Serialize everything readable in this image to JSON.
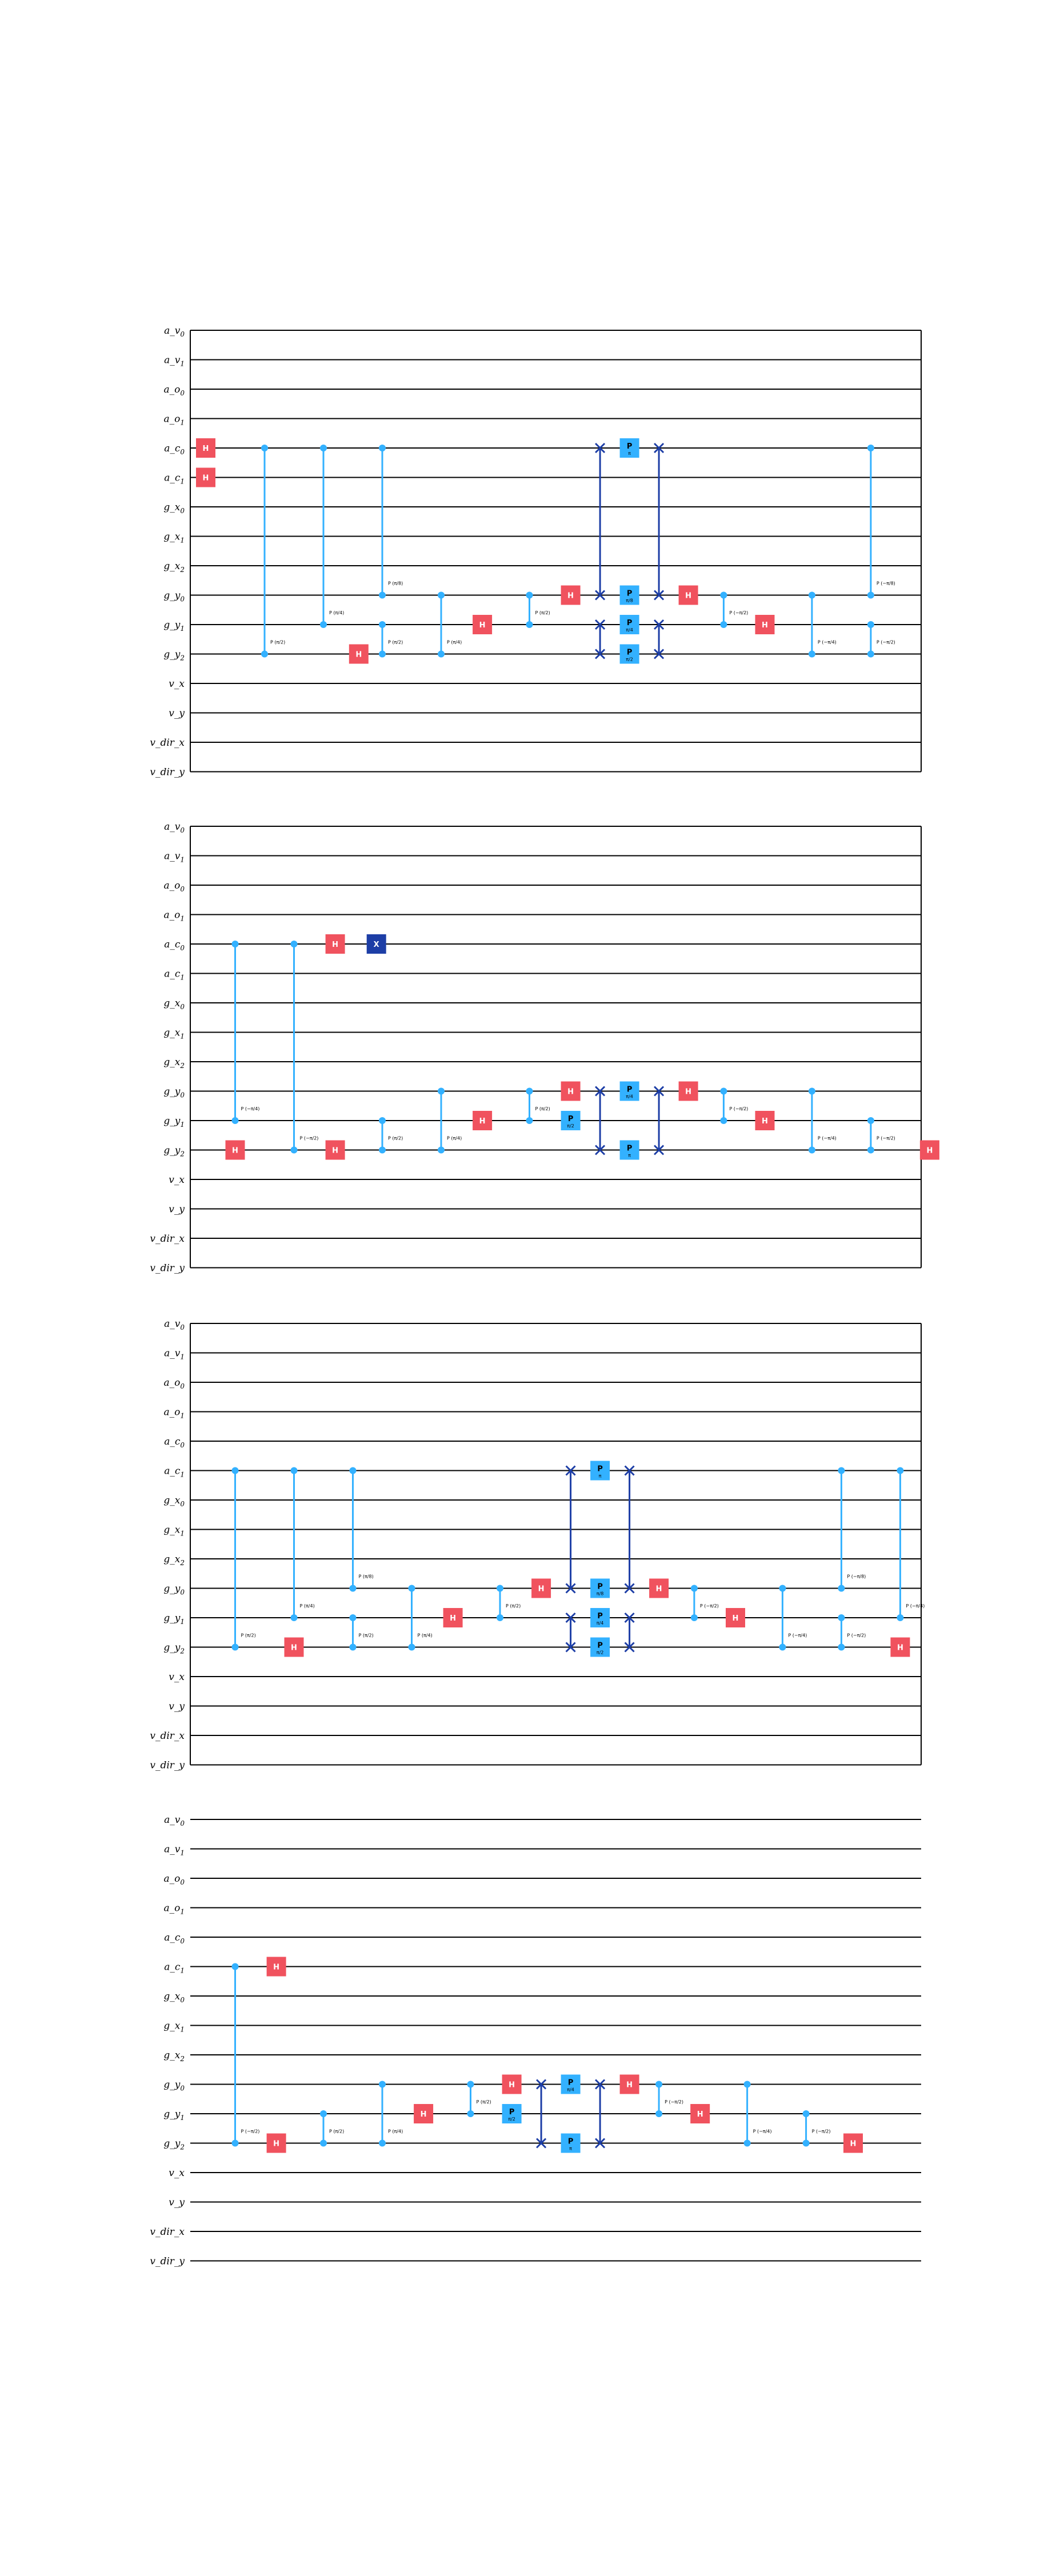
{
  "qubits": [
    "a_v0",
    "a_v1",
    "a_o0",
    "a_o1",
    "a_c0",
    "a_c1",
    "g_x0",
    "g_x1",
    "g_x2",
    "g_y0",
    "g_y1",
    "g_y2",
    "v_x",
    "v_y",
    "v_dir_x",
    "v_dir_y"
  ],
  "qubit_labels": [
    {
      "base": "a_v",
      "sub": "0"
    },
    {
      "base": "a_v",
      "sub": "1"
    },
    {
      "base": "a_o",
      "sub": "0"
    },
    {
      "base": "a_o",
      "sub": "1"
    },
    {
      "base": "a_c",
      "sub": "0"
    },
    {
      "base": "a_c",
      "sub": "1"
    },
    {
      "base": "g_x",
      "sub": "0"
    },
    {
      "base": "g_x",
      "sub": "1"
    },
    {
      "base": "g_x",
      "sub": "2"
    },
    {
      "base": "g_y",
      "sub": "0"
    },
    {
      "base": "g_y",
      "sub": "1"
    },
    {
      "base": "g_y",
      "sub": "2"
    },
    {
      "base": "v_x",
      "sub": ""
    },
    {
      "base": "v_y",
      "sub": ""
    },
    {
      "base": "v_dir_x",
      "sub": ""
    },
    {
      "base": "v_dir_y",
      "sub": ""
    }
  ],
  "colors": {
    "h_gate": "#f0525e",
    "p_gate": "#33b1ff",
    "x_gate": "#1d3ea6",
    "swap": "#1d3ea6",
    "control": "#33b1ff",
    "wire": "#000000"
  },
  "gate_labels": {
    "h": "H",
    "x": "X",
    "p": "P"
  },
  "panels": [
    {
      "gates": [
        {
          "t": "h",
          "q": "a_c0",
          "c": 0
        },
        {
          "t": "h",
          "q": "a_c1",
          "c": 0
        },
        {
          "t": "cp",
          "qs": [
            "a_c0",
            "g_y2"
          ],
          "c": 1,
          "label": "P (π/2)"
        },
        {
          "t": "cp",
          "qs": [
            "a_c0",
            "g_y1"
          ],
          "c": 2,
          "label": "P (π/4)"
        },
        {
          "t": "h",
          "q": "g_y2",
          "c": 2.6
        },
        {
          "t": "cp",
          "qs": [
            "a_c0",
            "g_y0"
          ],
          "c": 3,
          "label": "P (π/8)"
        },
        {
          "t": "cp",
          "qs": [
            "g_y1",
            "g_y2"
          ],
          "c": 3,
          "label": "P (π/2)"
        },
        {
          "t": "cp",
          "qs": [
            "g_y0",
            "g_y2"
          ],
          "c": 4,
          "label": "P (π/4)"
        },
        {
          "t": "h",
          "q": "g_y1",
          "c": 4.7
        },
        {
          "t": "cp",
          "qs": [
            "g_y0",
            "g_y1"
          ],
          "c": 5.5,
          "label": "P (π/2)"
        },
        {
          "t": "h",
          "q": "g_y0",
          "c": 6.2
        },
        {
          "t": "swap",
          "qs": [
            "a_c0",
            "g_y0"
          ],
          "c": 6.7
        },
        {
          "t": "swap",
          "qs": [
            "g_y1",
            "g_y2"
          ],
          "c": 6.7
        },
        {
          "t": "p",
          "q": "a_c0",
          "c": 7.2,
          "label": "π"
        },
        {
          "t": "p",
          "q": "g_y0",
          "c": 7.2,
          "label": "π/8"
        },
        {
          "t": "p",
          "q": "g_y1",
          "c": 7.2,
          "label": "π/4"
        },
        {
          "t": "p",
          "q": "g_y2",
          "c": 7.2,
          "label": "π/2"
        },
        {
          "t": "swap",
          "qs": [
            "a_c0",
            "g_y0"
          ],
          "c": 7.7
        },
        {
          "t": "swap",
          "qs": [
            "g_y1",
            "g_y2"
          ],
          "c": 7.7
        },
        {
          "t": "h",
          "q": "g_y0",
          "c": 8.2
        },
        {
          "t": "cp",
          "qs": [
            "g_y0",
            "g_y1"
          ],
          "c": 8.8,
          "label": "P (−π/2)"
        },
        {
          "t": "h",
          "q": "g_y1",
          "c": 9.5
        },
        {
          "t": "cp",
          "qs": [
            "g_y0",
            "g_y2"
          ],
          "c": 10.3,
          "label": "P (−π/4)"
        },
        {
          "t": "cp",
          "qs": [
            "a_c0",
            "g_y0"
          ],
          "c": 11.3,
          "label": "P (−π/8)"
        },
        {
          "t": "cp",
          "qs": [
            "g_y1",
            "g_y2"
          ],
          "c": 11.3,
          "label": "P (−π/2)"
        }
      ]
    },
    {
      "gates": [
        {
          "t": "cp",
          "qs": [
            "a_c0",
            "g_y1"
          ],
          "c": 0.5,
          "label": "P (−π/4)"
        },
        {
          "t": "h",
          "q": "g_y2",
          "c": 0.5
        },
        {
          "t": "cp",
          "qs": [
            "a_c0",
            "g_y2"
          ],
          "c": 1.5,
          "label": "P (−π/2)"
        },
        {
          "t": "h",
          "q": "a_c0",
          "c": 2.2
        },
        {
          "t": "h",
          "q": "g_y2",
          "c": 2.2
        },
        {
          "t": "x",
          "q": "a_c0",
          "c": 2.9
        },
        {
          "t": "cp",
          "qs": [
            "g_y1",
            "g_y2"
          ],
          "c": 3,
          "label": "P (π/2)"
        },
        {
          "t": "cp",
          "qs": [
            "g_y0",
            "g_y2"
          ],
          "c": 4,
          "label": "P (π/4)"
        },
        {
          "t": "h",
          "q": "g_y1",
          "c": 4.7
        },
        {
          "t": "cp",
          "qs": [
            "g_y0",
            "g_y1"
          ],
          "c": 5.5,
          "label": "P (π/2)"
        },
        {
          "t": "h",
          "q": "g_y0",
          "c": 6.2
        },
        {
          "t": "p",
          "q": "g_y1",
          "c": 6.2,
          "label": "π/2"
        },
        {
          "t": "swap",
          "qs": [
            "g_y0",
            "g_y2"
          ],
          "c": 6.7
        },
        {
          "t": "p",
          "q": "g_y0",
          "c": 7.2,
          "label": "π/4"
        },
        {
          "t": "p",
          "q": "g_y2",
          "c": 7.2,
          "label": "π"
        },
        {
          "t": "swap",
          "qs": [
            "g_y0",
            "g_y2"
          ],
          "c": 7.7
        },
        {
          "t": "h",
          "q": "g_y0",
          "c": 8.2
        },
        {
          "t": "cp",
          "qs": [
            "g_y0",
            "g_y1"
          ],
          "c": 8.8,
          "label": "P (−π/2)"
        },
        {
          "t": "h",
          "q": "g_y1",
          "c": 9.5
        },
        {
          "t": "cp",
          "qs": [
            "g_y0",
            "g_y2"
          ],
          "c": 10.3,
          "label": "P (−π/4)"
        },
        {
          "t": "cp",
          "qs": [
            "g_y1",
            "g_y2"
          ],
          "c": 11.3,
          "label": "P (−π/2)"
        },
        {
          "t": "h",
          "q": "g_y2",
          "c": 12.3
        }
      ]
    },
    {
      "gates": [
        {
          "t": "cp",
          "qs": [
            "a_c1",
            "g_y2"
          ],
          "c": 0.5,
          "label": "P (π/2)"
        },
        {
          "t": "cp",
          "qs": [
            "a_c1",
            "g_y1"
          ],
          "c": 1.5,
          "label": "P (π/4)"
        },
        {
          "t": "h",
          "q": "g_y2",
          "c": 1.5
        },
        {
          "t": "cp",
          "qs": [
            "a_c1",
            "g_y0"
          ],
          "c": 2.5,
          "label": "P (π/8)"
        },
        {
          "t": "cp",
          "qs": [
            "g_y1",
            "g_y2"
          ],
          "c": 2.5,
          "label": "P (π/2)"
        },
        {
          "t": "cp",
          "qs": [
            "g_y0",
            "g_y2"
          ],
          "c": 3.5,
          "label": "P (π/4)"
        },
        {
          "t": "h",
          "q": "g_y1",
          "c": 4.2
        },
        {
          "t": "cp",
          "qs": [
            "g_y0",
            "g_y1"
          ],
          "c": 5,
          "label": "P (π/2)"
        },
        {
          "t": "h",
          "q": "g_y0",
          "c": 5.7
        },
        {
          "t": "swap",
          "qs": [
            "a_c1",
            "g_y0"
          ],
          "c": 6.2
        },
        {
          "t": "swap",
          "qs": [
            "g_y1",
            "g_y2"
          ],
          "c": 6.2
        },
        {
          "t": "p",
          "q": "a_c1",
          "c": 6.7,
          "label": "π"
        },
        {
          "t": "p",
          "q": "g_y0",
          "c": 6.7,
          "label": "π/8"
        },
        {
          "t": "p",
          "q": "g_y1",
          "c": 6.7,
          "label": "π/4"
        },
        {
          "t": "p",
          "q": "g_y2",
          "c": 6.7,
          "label": "π/2"
        },
        {
          "t": "swap",
          "qs": [
            "a_c1",
            "g_y0"
          ],
          "c": 7.2
        },
        {
          "t": "swap",
          "qs": [
            "g_y1",
            "g_y2"
          ],
          "c": 7.2
        },
        {
          "t": "h",
          "q": "g_y0",
          "c": 7.7
        },
        {
          "t": "cp",
          "qs": [
            "g_y0",
            "g_y1"
          ],
          "c": 8.3,
          "label": "P (−π/2)"
        },
        {
          "t": "h",
          "q": "g_y1",
          "c": 9
        },
        {
          "t": "cp",
          "qs": [
            "g_y0",
            "g_y2"
          ],
          "c": 9.8,
          "label": "P (−π/4)"
        },
        {
          "t": "cp",
          "qs": [
            "a_c1",
            "g_y0"
          ],
          "c": 10.8,
          "label": "P (−π/8)"
        },
        {
          "t": "cp",
          "qs": [
            "g_y1",
            "g_y2"
          ],
          "c": 10.8,
          "label": "P (−π/2)"
        },
        {
          "t": "cp",
          "qs": [
            "a_c1",
            "g_y1"
          ],
          "c": 11.8,
          "label": "P (−π/4)"
        },
        {
          "t": "h",
          "q": "g_y2",
          "c": 11.8
        }
      ]
    },
    {
      "gates": [
        {
          "t": "cp",
          "qs": [
            "a_c1",
            "g_y2"
          ],
          "c": 0.5,
          "label": "P (−π/2)"
        },
        {
          "t": "h",
          "q": "a_c1",
          "c": 1.2
        },
        {
          "t": "h",
          "q": "g_y2",
          "c": 1.2
        },
        {
          "t": "cp",
          "qs": [
            "g_y1",
            "g_y2"
          ],
          "c": 2,
          "label": "P (π/2)"
        },
        {
          "t": "cp",
          "qs": [
            "g_y0",
            "g_y2"
          ],
          "c": 3,
          "label": "P (π/4)"
        },
        {
          "t": "h",
          "q": "g_y1",
          "c": 3.7
        },
        {
          "t": "cp",
          "qs": [
            "g_y0",
            "g_y1"
          ],
          "c": 4.5,
          "label": "P (π/2)"
        },
        {
          "t": "h",
          "q": "g_y0",
          "c": 5.2
        },
        {
          "t": "p",
          "q": "g_y1",
          "c": 5.2,
          "label": "π/2"
        },
        {
          "t": "swap",
          "qs": [
            "g_y0",
            "g_y2"
          ],
          "c": 5.7
        },
        {
          "t": "p",
          "q": "g_y0",
          "c": 6.2,
          "label": "π/4"
        },
        {
          "t": "p",
          "q": "g_y2",
          "c": 6.2,
          "label": "π"
        },
        {
          "t": "swap",
          "qs": [
            "g_y0",
            "g_y2"
          ],
          "c": 6.7
        },
        {
          "t": "h",
          "q": "g_y0",
          "c": 7.2
        },
        {
          "t": "cp",
          "qs": [
            "g_y0",
            "g_y1"
          ],
          "c": 7.7,
          "label": "P (−π/2)"
        },
        {
          "t": "h",
          "q": "g_y1",
          "c": 8.4
        },
        {
          "t": "cp",
          "qs": [
            "g_y0",
            "g_y2"
          ],
          "c": 9.2,
          "label": "P (−π/4)"
        },
        {
          "t": "cp",
          "qs": [
            "g_y1",
            "g_y2"
          ],
          "c": 10.2,
          "label": "P (−π/2)"
        },
        {
          "t": "h",
          "q": "g_y2",
          "c": 11
        }
      ]
    }
  ]
}
